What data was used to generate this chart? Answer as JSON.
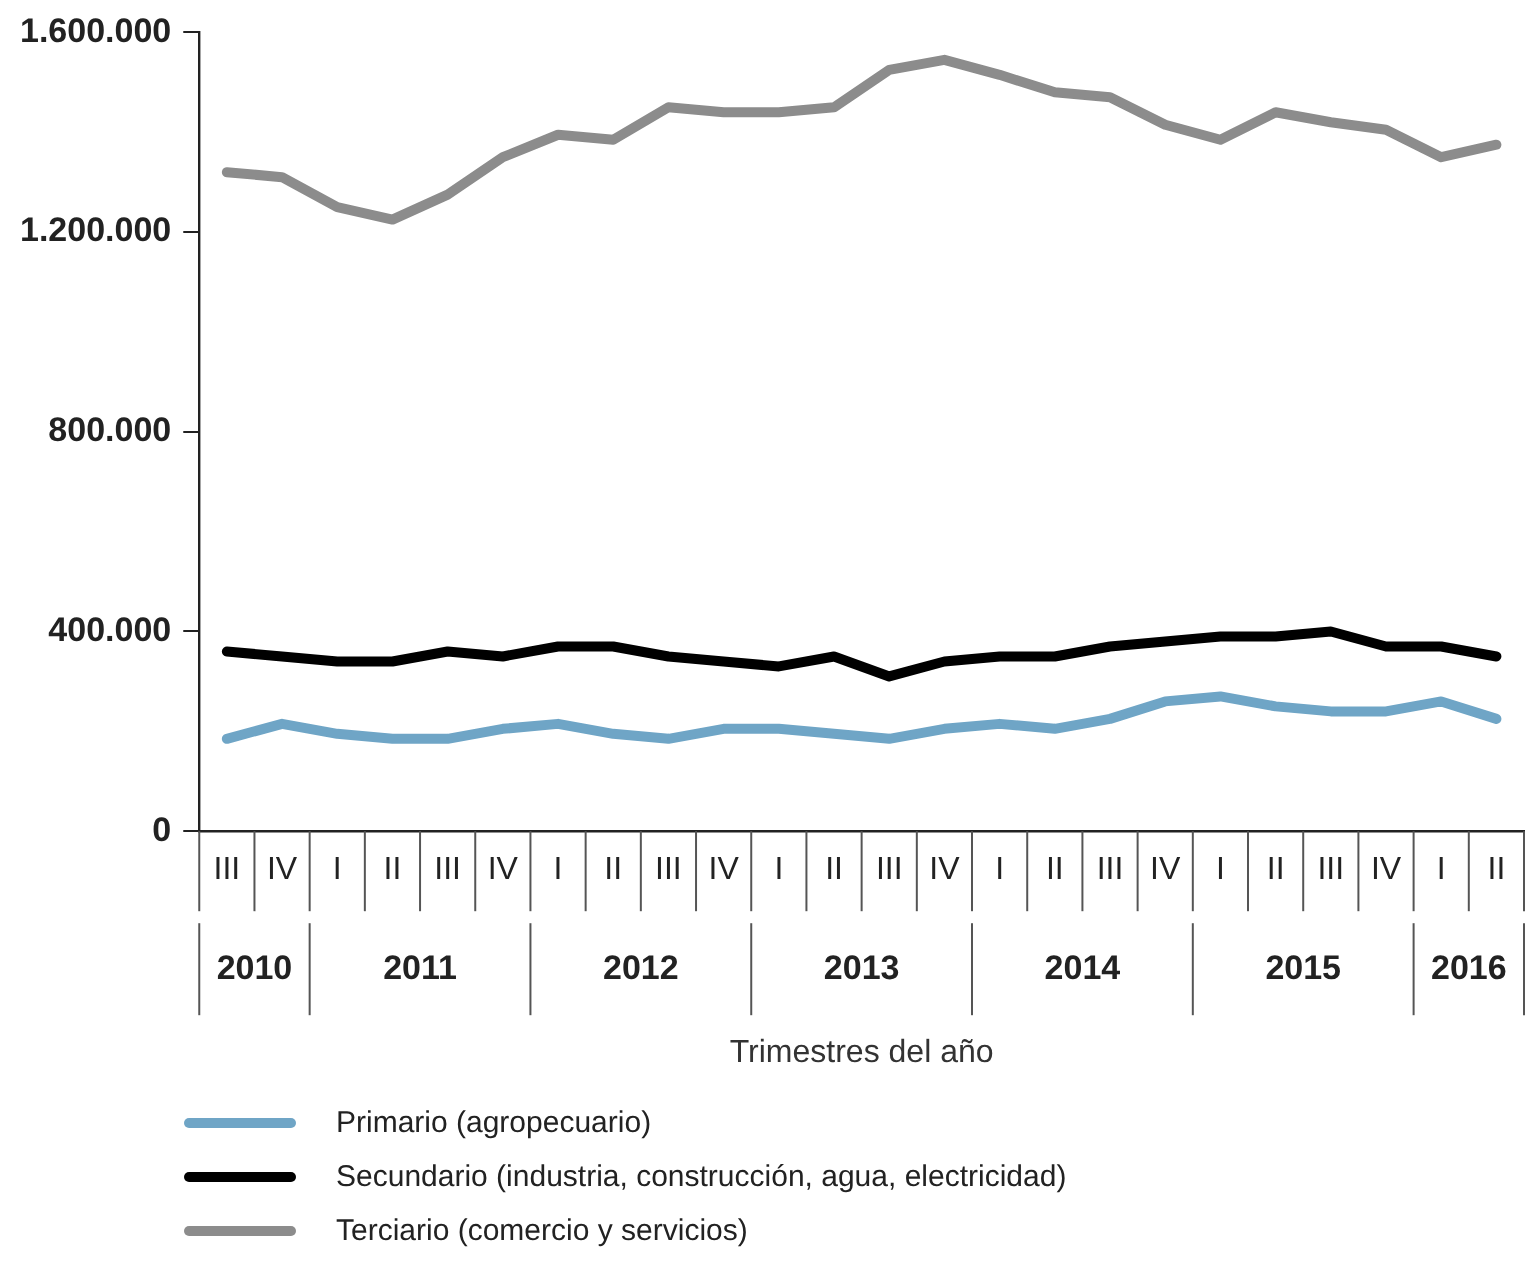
{
  "chart_data": {
    "type": "line",
    "xlabel": "Trimestres del año",
    "categories": [
      "III",
      "IV",
      "I",
      "II",
      "III",
      "IV",
      "I",
      "II",
      "III",
      "IV",
      "I",
      "II",
      "III",
      "IV",
      "I",
      "II",
      "III",
      "IV",
      "I",
      "II",
      "III",
      "IV",
      "I",
      "II"
    ],
    "ylim": [
      0,
      1600000
    ],
    "yticks": [
      0,
      {
        "value": 400000,
        "label": "400.000"
      },
      {
        "value": 800000,
        "label": "800.000"
      },
      {
        "value": 1200000,
        "label": "1.200.000"
      },
      {
        "value": 1600000,
        "label": "1.600.000"
      }
    ],
    "grid": false,
    "legend": "bottom",
    "marker": "none",
    "line_style": "solid",
    "series": [
      {
        "name": "Primario (agropecuario)",
        "color": "#6fa5c6",
        "values": [
          185000,
          215000,
          195000,
          185000,
          185000,
          205000,
          215000,
          195000,
          185000,
          205000,
          205000,
          195000,
          185000,
          205000,
          215000,
          205000,
          225000,
          260000,
          270000,
          250000,
          240000,
          240000,
          260000,
          225000
        ]
      },
      {
        "name": "Secundario (industria, construcción, agua, electricidad)",
        "color": "#000000",
        "values": [
          360000,
          350000,
          340000,
          340000,
          360000,
          350000,
          370000,
          370000,
          350000,
          340000,
          330000,
          350000,
          310000,
          340000,
          350000,
          350000,
          370000,
          380000,
          390000,
          390000,
          400000,
          370000,
          370000,
          350000
        ]
      },
      {
        "name": "Terciario (comercio y servicios)",
        "color": "#8c8c8c",
        "values": [
          1320000,
          1310000,
          1250000,
          1225000,
          1275000,
          1350000,
          1395000,
          1385000,
          1450000,
          1440000,
          1440000,
          1450000,
          1525000,
          1545000,
          1515000,
          1480000,
          1470000,
          1415000,
          1385000,
          1440000,
          1420000,
          1405000,
          1350000,
          1375000
        ]
      }
    ],
    "annotations": [
      "2010",
      "2011",
      "2012",
      "2013",
      "2014",
      "2015",
      "2016"
    ]
  }
}
